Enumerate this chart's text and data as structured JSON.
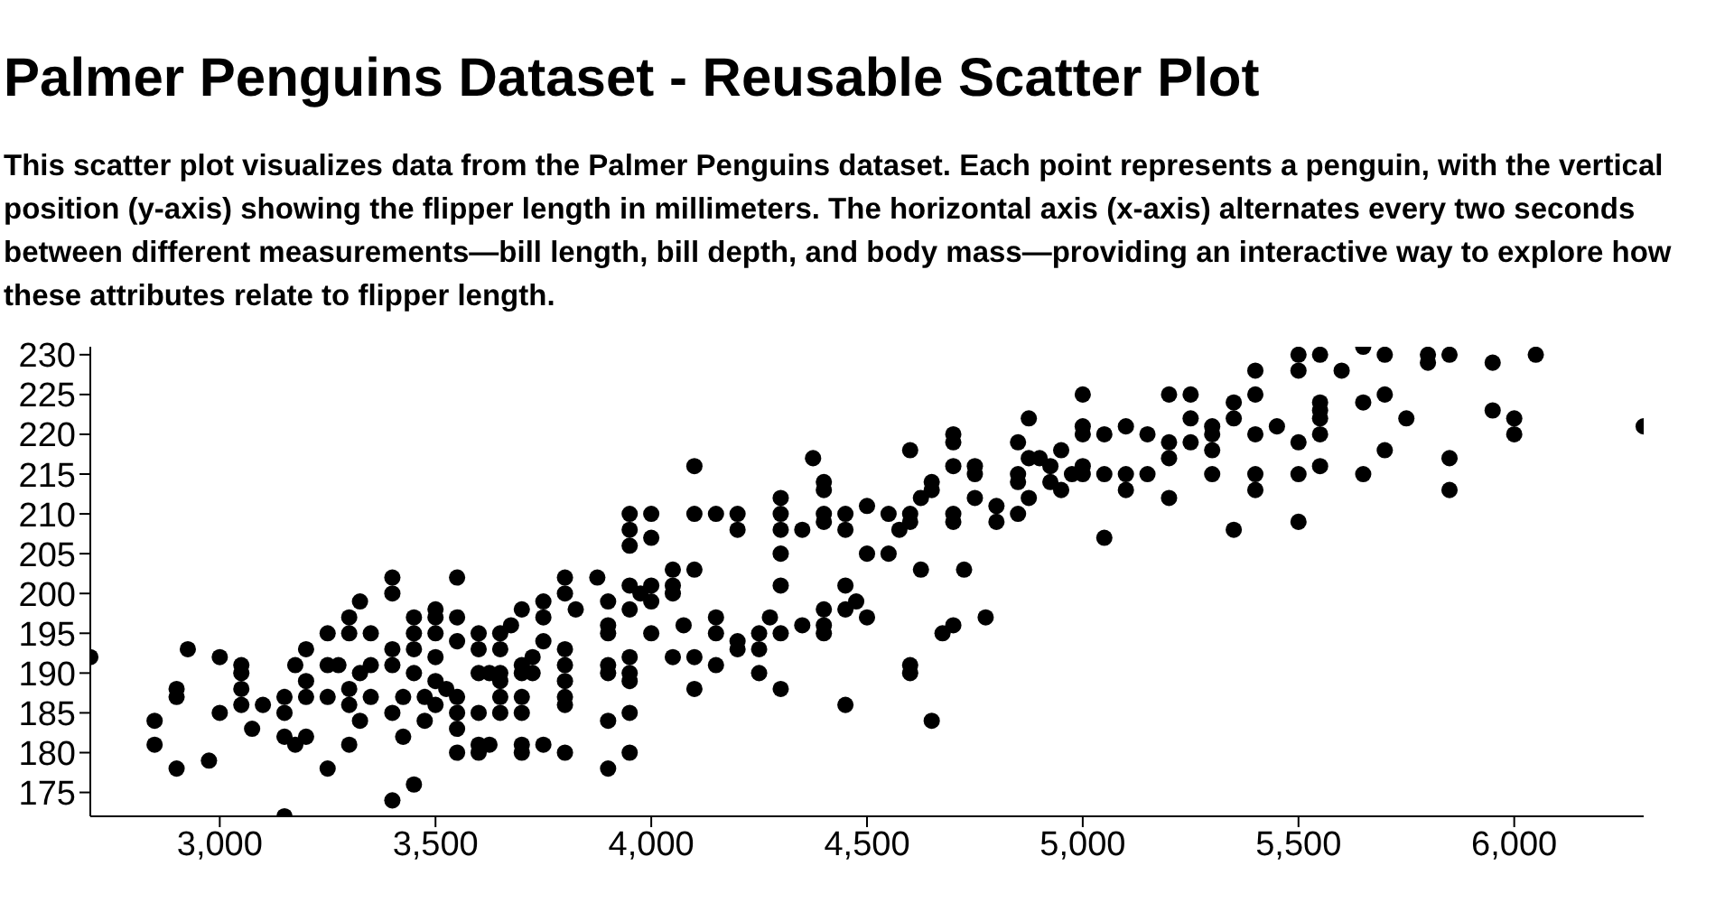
{
  "chart_data": {
    "type": "scatter",
    "title": "Palmer Penguins Dataset - Reusable Scatter Plot",
    "subtitle": "This scatter plot visualizes data from the Palmer Penguins dataset. Each point represents a penguin, with the vertical position (y-axis) showing the flipper length in millimeters. The horizontal axis (x-axis) alternates every two seconds between different measurements—bill length, bill depth, and body mass—providing an interactive way to explore how these attributes relate to flipper length.",
    "xlim": [
      2700,
      6300
    ],
    "xticks": [
      {
        "value": 3000,
        "label": "3,000"
      },
      {
        "value": 3500,
        "label": "3,500"
      },
      {
        "value": 4000,
        "label": "4,000"
      },
      {
        "value": 4500,
        "label": "4,500"
      },
      {
        "value": 5000,
        "label": "5,000"
      },
      {
        "value": 5500,
        "label": "5,500"
      },
      {
        "value": 6000,
        "label": "6,000"
      }
    ],
    "ylim": [
      172,
      231
    ],
    "yticks": [
      175,
      180,
      185,
      190,
      195,
      200,
      205,
      210,
      215,
      220,
      225,
      230
    ],
    "grid": false,
    "legend": false,
    "marker": "circle",
    "series": [
      {
        "color": "#000000",
        "x": [
          2700,
          2849,
          2849,
          2900,
          2900,
          2900,
          2926,
          2975,
          3000,
          3000,
          3050,
          3050,
          3050,
          3050,
          3075,
          3100,
          3150,
          3150,
          3150,
          3150,
          3175,
          3175,
          3200,
          3200,
          3200,
          3200,
          3250,
          3250,
          3250,
          3250,
          3275,
          3300,
          3300,
          3300,
          3300,
          3300,
          3325,
          3325,
          3325,
          3350,
          3350,
          3350,
          3400,
          3400,
          3400,
          3400,
          3400,
          3400,
          3425,
          3425,
          3450,
          3450,
          3450,
          3450,
          3450,
          3475,
          3475,
          3500,
          3500,
          3500,
          3500,
          3500,
          3500,
          3525,
          3550,
          3550,
          3550,
          3550,
          3550,
          3550,
          3550,
          3600,
          3600,
          3600,
          3600,
          3600,
          3600,
          3625,
          3625,
          3650,
          3650,
          3650,
          3650,
          3650,
          3650,
          3675,
          3700,
          3700,
          3700,
          3700,
          3700,
          3700,
          3700,
          3725,
          3725,
          3750,
          3750,
          3750,
          3750,
          3800,
          3800,
          3800,
          3800,
          3800,
          3800,
          3800,
          3800,
          3825,
          3875,
          3900,
          3900,
          3900,
          3900,
          3900,
          3900,
          3900,
          3950,
          3950,
          3950,
          3950,
          3950,
          3950,
          3950,
          3950,
          3950,
          3950,
          3975,
          4000,
          4000,
          4000,
          4000,
          4000,
          4050,
          4050,
          4050,
          4050,
          4075,
          4100,
          4100,
          4100,
          4100,
          4100,
          4150,
          4150,
          4150,
          4150,
          4200,
          4200,
          4200,
          4200,
          4250,
          4250,
          4250,
          4275,
          4300,
          4300,
          4300,
          4300,
          4300,
          4300,
          4300,
          4350,
          4350,
          4375,
          4400,
          4400,
          4400,
          4400,
          4400,
          4400,
          4400,
          4450,
          4450,
          4450,
          4450,
          4450,
          4475,
          4500,
          4500,
          4500,
          4550,
          4550,
          4575,
          4600,
          4600,
          4600,
          4600,
          4600,
          4625,
          4625,
          4650,
          4650,
          4650,
          4675,
          4700,
          4700,
          4700,
          4700,
          4700,
          4700,
          4725,
          4750,
          4750,
          4750,
          4775,
          4800,
          4800,
          4850,
          4850,
          4850,
          4850,
          4875,
          4875,
          4875,
          4900,
          4925,
          4925,
          4950,
          4950,
          4975,
          5000,
          5000,
          5000,
          5000,
          5000,
          5050,
          5050,
          5050,
          5100,
          5100,
          5100,
          5150,
          5150,
          5200,
          5200,
          5200,
          5200,
          5250,
          5250,
          5250,
          5300,
          5300,
          5300,
          5300,
          5350,
          5350,
          5350,
          5400,
          5400,
          5400,
          5400,
          5400,
          5450,
          5500,
          5500,
          5500,
          5500,
          5500,
          5550,
          5550,
          5550,
          5550,
          5550,
          5550,
          5600,
          5650,
          5650,
          5650,
          5700,
          5700,
          5700,
          5750,
          5800,
          5800,
          5850,
          5850,
          5850,
          5950,
          5950,
          6000,
          6000,
          6050,
          6300
        ],
        "values": [
          192,
          184,
          181,
          188,
          187,
          178,
          193,
          179,
          192,
          185,
          191,
          190,
          188,
          186,
          183,
          186,
          187,
          185,
          182,
          172,
          191,
          181,
          193,
          189,
          187,
          182,
          195,
          191,
          187,
          178,
          191,
          197,
          195,
          188,
          186,
          181,
          199,
          190,
          184,
          195,
          191,
          187,
          202,
          200,
          193,
          191,
          185,
          174,
          187,
          182,
          197,
          195,
          193,
          190,
          176,
          187,
          184,
          198,
          197,
          195,
          192,
          189,
          186,
          188,
          202,
          197,
          194,
          187,
          185,
          183,
          180,
          195,
          193,
          190,
          185,
          181,
          180,
          190,
          181,
          195,
          193,
          190,
          189,
          187,
          185,
          196,
          198,
          191,
          190,
          187,
          185,
          181,
          180,
          192,
          190,
          199,
          197,
          194,
          181,
          202,
          200,
          193,
          191,
          189,
          187,
          186,
          180,
          198,
          202,
          199,
          196,
          195,
          191,
          190,
          184,
          178,
          210,
          208,
          206,
          201,
          198,
          192,
          190,
          189,
          185,
          180,
          200,
          210,
          207,
          201,
          199,
          195,
          203,
          201,
          200,
          192,
          196,
          216,
          210,
          203,
          192,
          188,
          210,
          197,
          195,
          191,
          210,
          208,
          194,
          193,
          195,
          193,
          190,
          197,
          212,
          210,
          208,
          205,
          201,
          195,
          188,
          208,
          196,
          217,
          214,
          213,
          210,
          209,
          198,
          196,
          195,
          210,
          208,
          201,
          198,
          186,
          199,
          211,
          205,
          197,
          210,
          205,
          208,
          218,
          210,
          209,
          191,
          190,
          212,
          203,
          214,
          213,
          184,
          195,
          196,
          220,
          219,
          216,
          210,
          209,
          203,
          216,
          215,
          212,
          197,
          211,
          209,
          219,
          215,
          214,
          210,
          222,
          217,
          212,
          217,
          216,
          214,
          218,
          213,
          215,
          225,
          221,
          220,
          216,
          215,
          220,
          215,
          207,
          221,
          215,
          213,
          220,
          215,
          225,
          219,
          217,
          212,
          225,
          222,
          219,
          221,
          220,
          218,
          215,
          224,
          222,
          208,
          228,
          225,
          220,
          215,
          213,
          221,
          230,
          228,
          219,
          215,
          209,
          230,
          224,
          223,
          222,
          220,
          216,
          228,
          231,
          224,
          215,
          230,
          225,
          218,
          222,
          230,
          229,
          230,
          217,
          213,
          229,
          223,
          222,
          220,
          230,
          221
        ]
      }
    ]
  }
}
